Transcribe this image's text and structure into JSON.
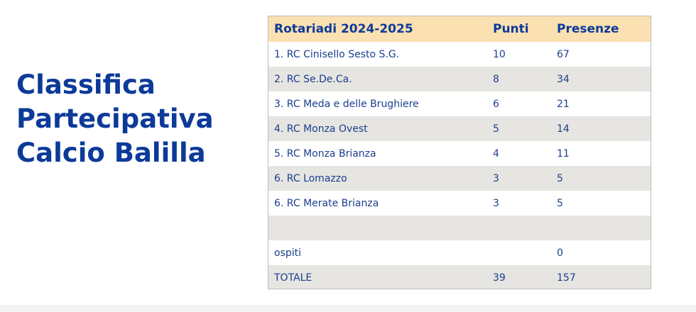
{
  "title": {
    "lines": [
      "Classifica",
      "Partecipativa",
      "Calcio Balilla"
    ]
  },
  "colors": {
    "title": "#0c3a99",
    "header_bg": "#fbe0b1",
    "row_alt_bg": "#e6e5e1",
    "text": "#1a3e8c"
  },
  "table": {
    "headers": [
      "Rotariadi 2024-2025",
      "Punti",
      "Presenze"
    ],
    "rows": [
      [
        "1. RC Cinisello Sesto S.G.",
        "10",
        "67"
      ],
      [
        "2. RC Se.De.Ca.",
        "8",
        "34"
      ],
      [
        "3. RC Meda e delle Brughiere",
        "6",
        "21"
      ],
      [
        "4. RC Monza Ovest",
        "5",
        "14"
      ],
      [
        "5. RC Monza Brianza",
        "4",
        "11"
      ],
      [
        "6. RC Lomazzo",
        "3",
        "5"
      ],
      [
        "6. RC Merate Brianza",
        "3",
        "5"
      ],
      [
        "",
        "",
        ""
      ],
      [
        "ospiti",
        "",
        "0"
      ],
      [
        "TOTALE",
        "39",
        "157"
      ]
    ]
  }
}
